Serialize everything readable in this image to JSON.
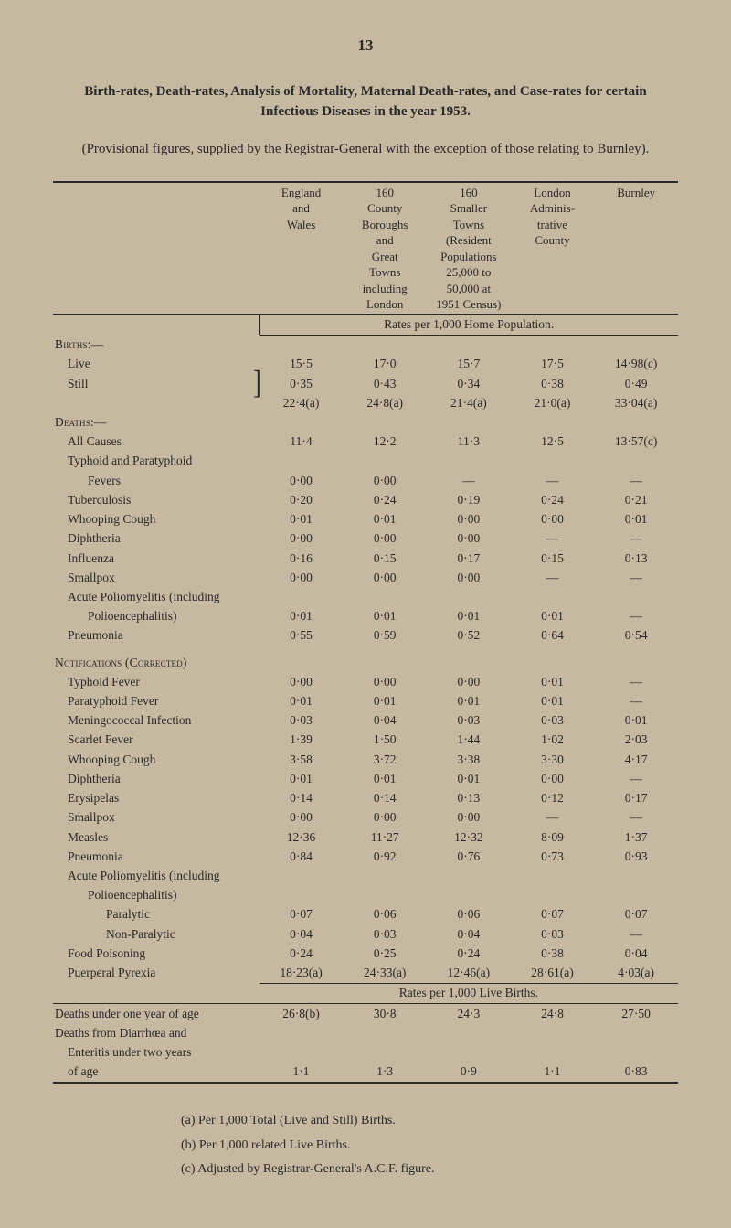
{
  "page_number": "13",
  "title_line1": "Birth-rates, Death-rates, Analysis of Mortality, Maternal Death-rates, and Case-rates for certain",
  "title_line2": "Infectious Diseases in the year 1953.",
  "intro": "(Provisional figures, supplied by the Registrar-General with the exception of those relating to Burnley).",
  "columns": {
    "c1": "England\nand\nWales",
    "c2": "160\nCounty\nBoroughs\nand\nGreat\nTowns\nincluding\nLondon",
    "c3": "160\nSmaller\nTowns\n(Resident\nPopulations\n25,000 to\n50,000 at\n1951 Census)",
    "c4": "London\nAdminis-\ntrative\nCounty",
    "c5": "Burnley"
  },
  "rates_label_1": "Rates per 1,000 Home Population.",
  "rates_label_2": "Rates per 1,000 Live Births.",
  "sections": {
    "births": "Births:—",
    "deaths": "Deaths:—",
    "notifications": "Notifications (Corrected)"
  },
  "rows": [
    {
      "label": "Live",
      "indent": 1,
      "v": [
        "15·5",
        "17·0",
        "15·7",
        "17·5",
        "14·98(c)"
      ]
    },
    {
      "label": "Still",
      "indent": 1,
      "bracket": true,
      "v": [
        "0·35",
        "0·43",
        "0·34",
        "0·38",
        "0·49"
      ]
    },
    {
      "label": "",
      "indent": 1,
      "v": [
        "22·4(a)",
        "24·8(a)",
        "21·4(a)",
        "21·0(a)",
        "33·04(a)"
      ]
    },
    {
      "label": "All Causes",
      "indent": 1,
      "v": [
        "11·4",
        "12·2",
        "11·3",
        "12·5",
        "13·57(c)"
      ]
    },
    {
      "label": "Typhoid and Paratyphoid",
      "indent": 1,
      "v": [
        "",
        "",
        "",
        "",
        ""
      ]
    },
    {
      "label": "Fevers",
      "indent": 2,
      "v": [
        "0·00",
        "0·00",
        "—",
        "—",
        "—"
      ]
    },
    {
      "label": "Tuberculosis",
      "indent": 1,
      "v": [
        "0·20",
        "0·24",
        "0·19",
        "0·24",
        "0·21"
      ]
    },
    {
      "label": "Whooping Cough",
      "indent": 1,
      "v": [
        "0·01",
        "0·01",
        "0·00",
        "0·00",
        "0·01"
      ]
    },
    {
      "label": "Diphtheria",
      "indent": 1,
      "v": [
        "0·00",
        "0·00",
        "0·00",
        "—",
        "—"
      ]
    },
    {
      "label": "Influenza",
      "indent": 1,
      "v": [
        "0·16",
        "0·15",
        "0·17",
        "0·15",
        "0·13"
      ]
    },
    {
      "label": "Smallpox",
      "indent": 1,
      "v": [
        "0·00",
        "0·00",
        "0·00",
        "—",
        "—"
      ]
    },
    {
      "label": "Acute Poliomyelitis (including",
      "indent": 1,
      "v": [
        "",
        "",
        "",
        "",
        ""
      ]
    },
    {
      "label": "Polioencephalitis)",
      "indent": 2,
      "v": [
        "0·01",
        "0·01",
        "0·01",
        "0·01",
        "—"
      ]
    },
    {
      "label": "Pneumonia",
      "indent": 1,
      "v": [
        "0·55",
        "0·59",
        "0·52",
        "0·64",
        "0·54"
      ]
    }
  ],
  "rows2": [
    {
      "label": "Typhoid Fever",
      "indent": 1,
      "v": [
        "0·00",
        "0·00",
        "0·00",
        "0·01",
        "—"
      ]
    },
    {
      "label": "Paratyphoid Fever",
      "indent": 1,
      "v": [
        "0·01",
        "0·01",
        "0·01",
        "0·01",
        "—"
      ]
    },
    {
      "label": "Meningococcal Infection",
      "indent": 1,
      "v": [
        "0·03",
        "0·04",
        "0·03",
        "0·03",
        "0·01"
      ]
    },
    {
      "label": "Scarlet Fever",
      "indent": 1,
      "v": [
        "1·39",
        "1·50",
        "1·44",
        "1·02",
        "2·03"
      ]
    },
    {
      "label": "Whooping Cough",
      "indent": 1,
      "v": [
        "3·58",
        "3·72",
        "3·38",
        "3·30",
        "4·17"
      ]
    },
    {
      "label": "Diphtheria",
      "indent": 1,
      "v": [
        "0·01",
        "0·01",
        "0·01",
        "0·00",
        "—"
      ]
    },
    {
      "label": "Erysipelas",
      "indent": 1,
      "v": [
        "0·14",
        "0·14",
        "0·13",
        "0·12",
        "0·17"
      ]
    },
    {
      "label": "Smallpox",
      "indent": 1,
      "v": [
        "0·00",
        "0·00",
        "0·00",
        "—",
        "—"
      ]
    },
    {
      "label": "Measles",
      "indent": 1,
      "v": [
        "12·36",
        "11·27",
        "12·32",
        "8·09",
        "1·37"
      ]
    },
    {
      "label": "Pneumonia",
      "indent": 1,
      "v": [
        "0·84",
        "0·92",
        "0·76",
        "0·73",
        "0·93"
      ]
    },
    {
      "label": "Acute Poliomyelitis (including",
      "indent": 1,
      "v": [
        "",
        "",
        "",
        "",
        ""
      ]
    },
    {
      "label": "Polioencephalitis)",
      "indent": 2,
      "v": [
        "",
        "",
        "",
        "",
        ""
      ]
    },
    {
      "label": "Paralytic",
      "indent": 3,
      "v": [
        "0·07",
        "0·06",
        "0·06",
        "0·07",
        "0·07"
      ]
    },
    {
      "label": "Non-Paralytic",
      "indent": 3,
      "v": [
        "0·04",
        "0·03",
        "0·04",
        "0·03",
        "—"
      ]
    },
    {
      "label": "Food Poisoning",
      "indent": 1,
      "v": [
        "0·24",
        "0·25",
        "0·24",
        "0·38",
        "0·04"
      ]
    },
    {
      "label": "Puerperal Pyrexia",
      "indent": 1,
      "v": [
        "18·23(a)",
        "24·33(a)",
        "12·46(a)",
        "28·61(a)",
        "4·03(a)"
      ]
    }
  ],
  "rows3": [
    {
      "label": "Deaths under one year of age",
      "indent": 0,
      "v": [
        "26·8(b)",
        "30·8",
        "24·3",
        "24·8",
        "27·50"
      ]
    },
    {
      "label": "Deaths from Diarrhœa and",
      "indent": 0,
      "v": [
        "",
        "",
        "",
        "",
        ""
      ]
    },
    {
      "label": "Enteritis under two years",
      "indent": 1,
      "v": [
        "",
        "",
        "",
        "",
        ""
      ]
    },
    {
      "label": "of age",
      "indent": 1,
      "v": [
        "1·1",
        "1·3",
        "0·9",
        "1·1",
        "0·83"
      ]
    }
  ],
  "footnotes": {
    "a": "(a)  Per 1,000 Total (Live and Still) Births.",
    "b": "(b)  Per 1,000 related Live Births.",
    "c": "(c)  Adjusted by Registrar-General's A.C.F. figure."
  },
  "colors": {
    "background": "#c5b9a0",
    "text": "#2a2a2a",
    "rule": "#2a2a2a"
  }
}
